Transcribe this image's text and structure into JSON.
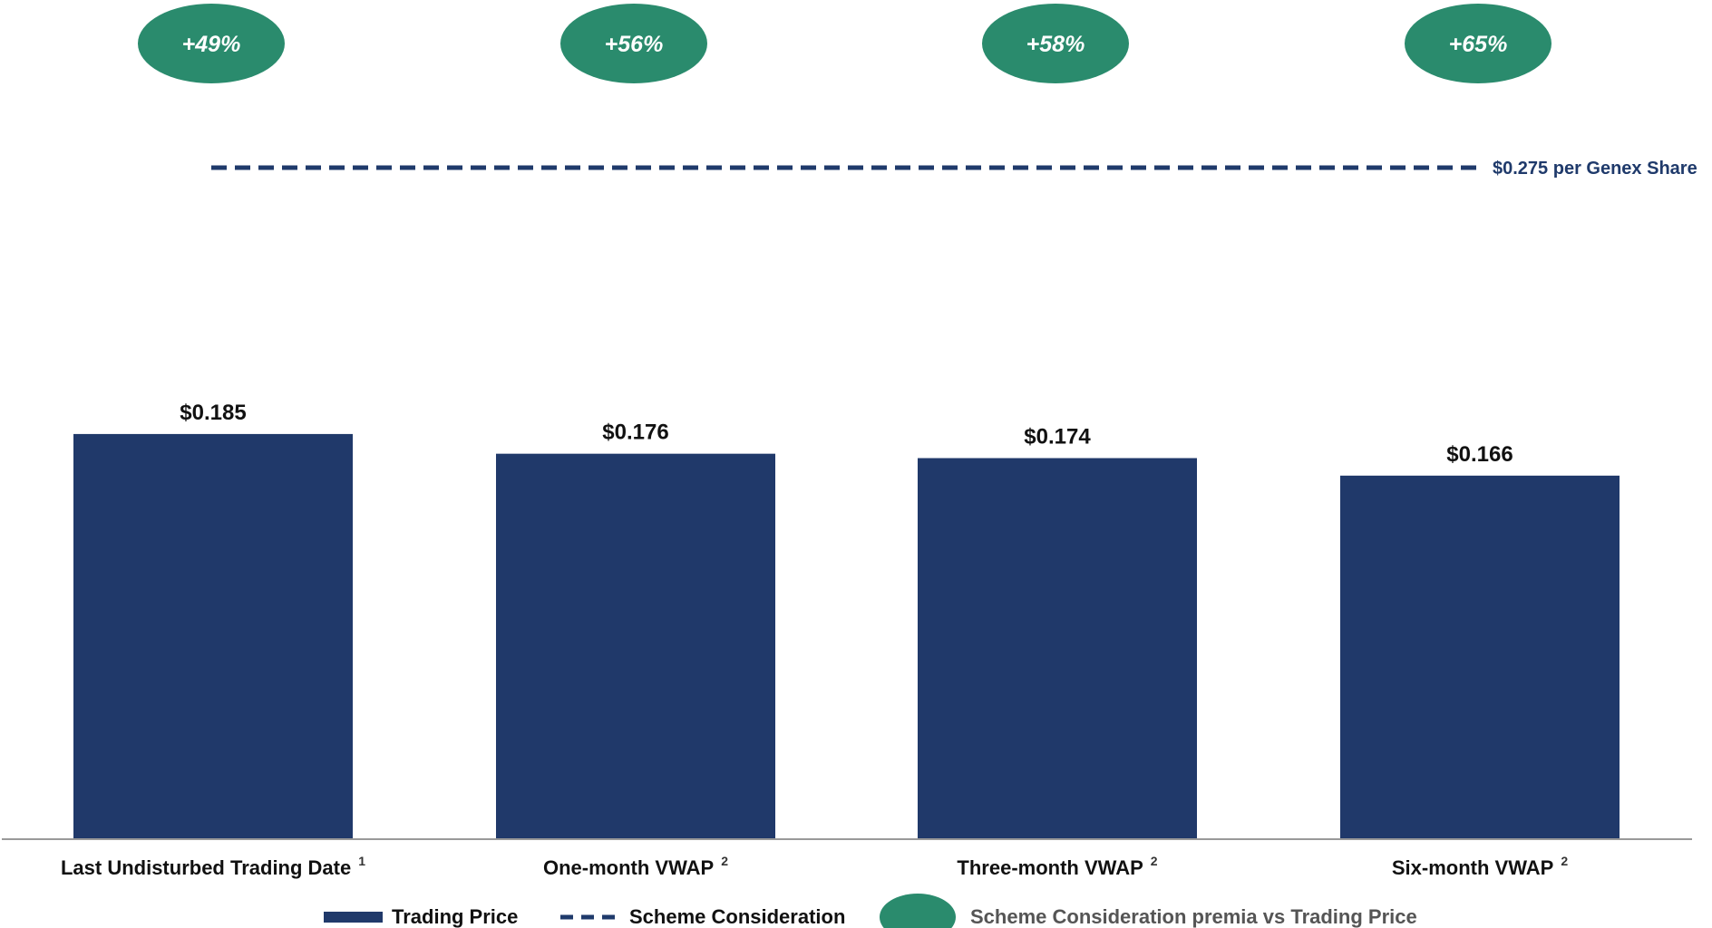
{
  "colors": {
    "bar": "#20396a",
    "premium": "#2a8b6d",
    "reference_line": "#1f3a6b",
    "axis": "#999999"
  },
  "chart_data": {
    "type": "bar",
    "categories": [
      "Last Undisturbed Trading Date",
      "One-month VWAP",
      "Three-month VWAP",
      "Six-month VWAP"
    ],
    "category_footnotes": [
      "1",
      "2",
      "2",
      "2"
    ],
    "series": [
      {
        "name": "Trading Price",
        "values": [
          0.185,
          0.176,
          0.174,
          0.166
        ]
      }
    ],
    "value_labels": [
      "$0.185",
      "$0.176",
      "$0.174",
      "$0.166"
    ],
    "premia": [
      "+49%",
      "+56%",
      "+58%",
      "+65%"
    ],
    "reference_line": {
      "value": 0.275,
      "label": "$0.275 per Genex Share"
    },
    "ylim": [
      0,
      0.36
    ],
    "legend": {
      "position": "bottom",
      "items": [
        "Trading Price",
        "Scheme Consideration",
        "Scheme Consideration premia vs Trading Price"
      ]
    },
    "grid": false
  }
}
